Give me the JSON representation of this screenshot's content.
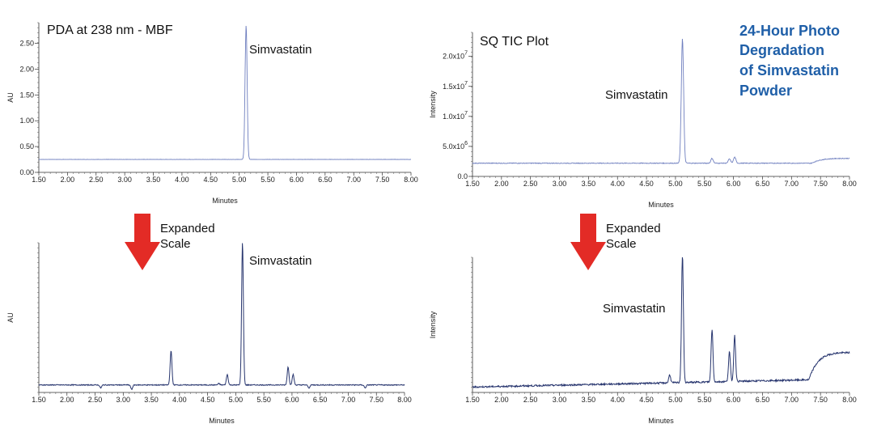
{
  "side_title": [
    "24-Hour Photo",
    "Degradation",
    "of Simvastatin",
    "Powder"
  ],
  "colors": {
    "trace_top": "#6f7fbf",
    "trace_bottom": "#27356e",
    "arrow": "#e32b26",
    "title": "#1f5fa8"
  },
  "charts": {
    "pda": {
      "title": "PDA at 238 nm - MBF",
      "ylabel": "AU",
      "xlabel": "Minutes",
      "peak_label": "Simvastatin",
      "yticks": [
        "0.00",
        "0.50",
        "1.00",
        "1.50",
        "2.00",
        "2.50"
      ]
    },
    "tic": {
      "title": "SQ TIC Plot",
      "ylabel": "Intensity",
      "xlabel": "Minutes",
      "peak_label": "Simvastatin"
    },
    "pda_exp": {
      "ylabel": "AU",
      "xlabel": "Minutes",
      "peak_label": "Simvastatin"
    },
    "tic_exp": {
      "ylabel": "Intensity",
      "xlabel": "Minutes",
      "peak_label": "Simvastatin"
    }
  },
  "arrows": [
    {
      "label1": "Expanded",
      "label2": "Scale"
    },
    {
      "label1": "Expanded",
      "label2": "Scale"
    }
  ],
  "xticks": [
    "1.50",
    "2.00",
    "2.50",
    "3.00",
    "3.50",
    "4.00",
    "4.50",
    "5.00",
    "5.50",
    "6.00",
    "6.50",
    "7.00",
    "7.50",
    "8.00"
  ],
  "tic_yticks": [
    {
      "base": "0.0",
      "exp": ""
    },
    {
      "base": "5.0x10",
      "exp": "6"
    },
    {
      "base": "1.0x10",
      "exp": "7"
    },
    {
      "base": "1.5x10",
      "exp": "7"
    },
    {
      "base": "2.0x10",
      "exp": "7"
    }
  ],
  "chart_data": [
    {
      "type": "line",
      "title": "PDA at 238 nm - MBF",
      "xlabel": "Minutes",
      "ylabel": "AU",
      "xlim": [
        1.5,
        8.0
      ],
      "ylim": [
        0.0,
        2.9
      ],
      "baseline": 0.25,
      "peaks": [
        {
          "x": 5.12,
          "y": 2.85,
          "label": "Simvastatin"
        }
      ]
    },
    {
      "type": "line",
      "title": "SQ TIC Plot",
      "xlabel": "Minutes",
      "ylabel": "Intensity",
      "xlim": [
        1.5,
        8.0
      ],
      "ylim": [
        0,
        24000000
      ],
      "baseline": 2200000,
      "peaks": [
        {
          "x": 5.12,
          "y": 23000000,
          "label": "Simvastatin"
        },
        {
          "x": 5.63,
          "y": 3000000
        },
        {
          "x": 5.93,
          "y": 2900000
        },
        {
          "x": 6.02,
          "y": 3200000
        },
        {
          "x": 7.5,
          "y": 3400000
        }
      ]
    },
    {
      "type": "line",
      "title": "Expanded Scale (PDA)",
      "xlabel": "Minutes",
      "ylabel": "AU",
      "xlim": [
        1.5,
        8.0
      ],
      "peaks": [
        {
          "x": 2.6,
          "y": 0.03
        },
        {
          "x": 3.15,
          "y": 0.02
        },
        {
          "x": 3.85,
          "y": 0.28
        },
        {
          "x": 4.3,
          "y": 0.05
        },
        {
          "x": 4.7,
          "y": 0.06
        },
        {
          "x": 4.85,
          "y": 0.12
        },
        {
          "x": 5.12,
          "y": 1.0,
          "label": "Simvastatin"
        },
        {
          "x": 5.93,
          "y": 0.17
        },
        {
          "x": 6.02,
          "y": 0.12
        },
        {
          "x": 6.3,
          "y": 0.03
        },
        {
          "x": 7.3,
          "y": 0.03
        }
      ]
    },
    {
      "type": "line",
      "title": "Expanded Scale (TIC)",
      "xlabel": "Minutes",
      "ylabel": "Intensity",
      "xlim": [
        1.5,
        8.0
      ],
      "peaks": [
        {
          "x": 4.9,
          "y": 0.1
        },
        {
          "x": 5.12,
          "y": 1.0,
          "label": "Simvastatin"
        },
        {
          "x": 5.63,
          "y": 0.43
        },
        {
          "x": 5.93,
          "y": 0.26
        },
        {
          "x": 6.02,
          "y": 0.38
        },
        {
          "x": 7.5,
          "y": 0.3
        }
      ]
    }
  ]
}
